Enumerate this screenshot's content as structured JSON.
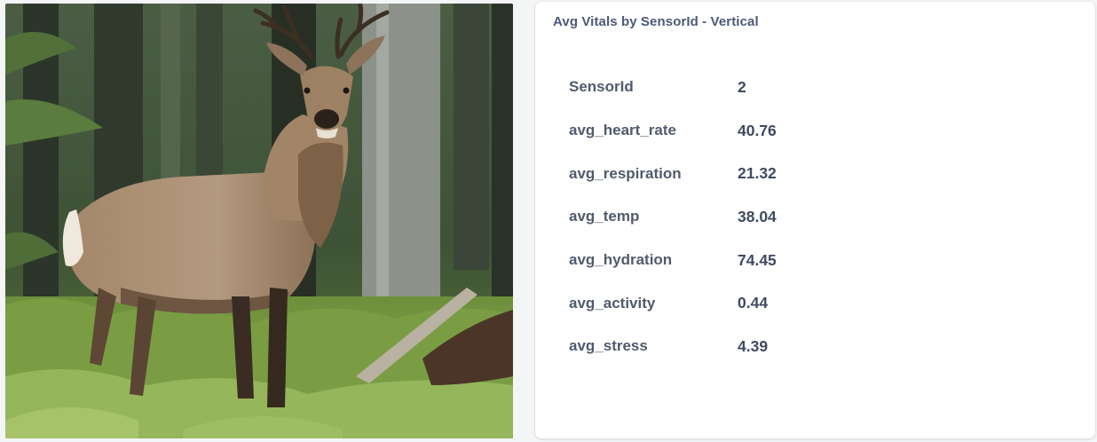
{
  "photo": {
    "subject": "deer-in-forest"
  },
  "vitals_card": {
    "title": "Avg Vitals by SensorId - Vertical",
    "rows": [
      {
        "label": "SensorId",
        "value": "2"
      },
      {
        "label": "avg_heart_rate",
        "value": "40.76"
      },
      {
        "label": "avg_respiration",
        "value": "21.32"
      },
      {
        "label": "avg_temp",
        "value": "38.04"
      },
      {
        "label": "avg_hydration",
        "value": "74.45"
      },
      {
        "label": "avg_activity",
        "value": "0.44"
      },
      {
        "label": "avg_stress",
        "value": "4.39"
      }
    ]
  }
}
